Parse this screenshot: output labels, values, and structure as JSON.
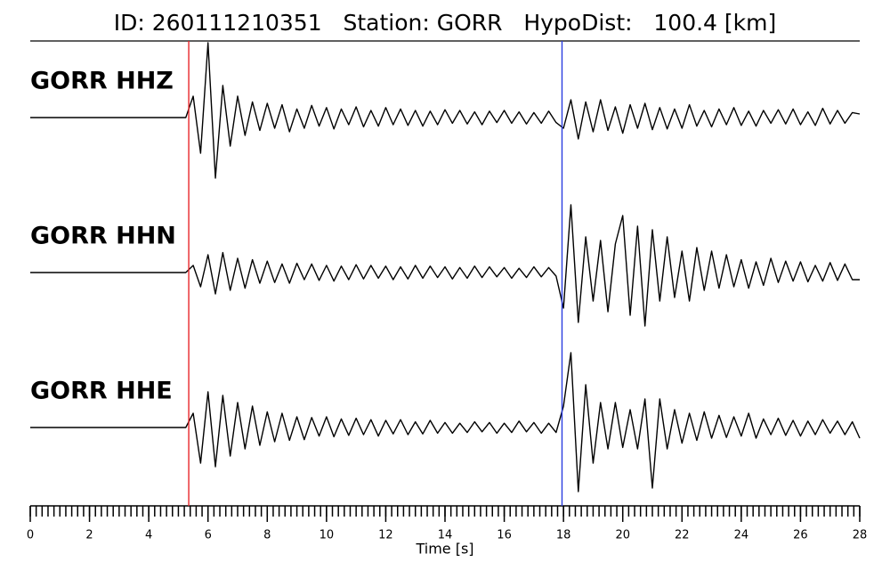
{
  "chart_data": {
    "type": "seismogram",
    "title": "ID: 260111210351   Station: GORR   HypoDist:   100.4 [km]",
    "xlabel": "Time [s]",
    "xlim": [
      0,
      28
    ],
    "xticks": [
      0,
      2,
      4,
      6,
      8,
      10,
      12,
      14,
      16,
      18,
      20,
      22,
      24,
      26,
      28
    ],
    "minor_tick_interval": 0.2,
    "label_color": "#4c9a0c",
    "picks": [
      {
        "time": 5.35,
        "color": "#e8262a"
      },
      {
        "time": 17.95,
        "color": "#2a3de0"
      }
    ],
    "x": [
      0,
      0.25,
      0.5,
      0.75,
      1,
      1.25,
      1.5,
      1.75,
      2,
      2.25,
      2.5,
      2.75,
      3,
      3.25,
      3.5,
      3.75,
      4,
      4.25,
      4.5,
      4.75,
      5,
      5.25,
      5.5,
      5.75,
      6,
      6.25,
      6.5,
      6.75,
      7,
      7.25,
      7.5,
      7.75,
      8,
      8.25,
      8.5,
      8.75,
      9,
      9.25,
      9.5,
      9.75,
      10,
      10.25,
      10.5,
      10.75,
      11,
      11.25,
      11.5,
      11.75,
      12,
      12.25,
      12.5,
      12.75,
      13,
      13.25,
      13.5,
      13.75,
      14,
      14.25,
      14.5,
      14.75,
      15,
      15.25,
      15.5,
      15.75,
      16,
      16.25,
      16.5,
      16.75,
      17,
      17.25,
      17.5,
      17.75,
      18,
      18.25,
      18.5,
      18.75,
      19,
      19.25,
      19.5,
      19.75,
      20,
      20.25,
      20.5,
      20.75,
      21,
      21.25,
      21.5,
      21.75,
      22,
      22.25,
      22.5,
      22.75,
      23,
      23.25,
      23.5,
      23.75,
      24,
      24.25,
      24.5,
      24.75,
      25,
      25.25,
      25.5,
      25.75,
      26,
      26.25,
      26.5,
      26.75,
      27,
      27.25,
      27.5,
      27.75,
      28
    ],
    "series": [
      {
        "name": "GORR HHZ",
        "color": "#000000",
        "values": [
          0,
          0,
          0,
          0,
          0,
          0,
          0,
          0,
          0,
          0,
          0,
          0,
          0,
          0,
          0,
          0,
          0,
          0,
          0,
          0,
          0,
          0,
          0.3,
          -0.5,
          1.05,
          -0.85,
          0.45,
          -0.4,
          0.3,
          -0.25,
          0.22,
          -0.18,
          0.2,
          -0.15,
          0.18,
          -0.2,
          0.12,
          -0.15,
          0.17,
          -0.12,
          0.14,
          -0.16,
          0.12,
          -0.1,
          0.15,
          -0.13,
          0.1,
          -0.12,
          0.14,
          -0.1,
          0.12,
          -0.11,
          0.1,
          -0.12,
          0.09,
          -0.1,
          0.11,
          -0.08,
          0.1,
          -0.09,
          0.08,
          -0.1,
          0.09,
          -0.07,
          0.1,
          -0.08,
          0.08,
          -0.09,
          0.07,
          -0.08,
          0.09,
          -0.07,
          -0.15,
          0.25,
          -0.3,
          0.22,
          -0.2,
          0.25,
          -0.18,
          0.15,
          -0.22,
          0.18,
          -0.15,
          0.2,
          -0.17,
          0.14,
          -0.16,
          0.12,
          -0.15,
          0.18,
          -0.12,
          0.1,
          -0.13,
          0.12,
          -0.1,
          0.14,
          -0.11,
          0.09,
          -0.12,
          0.1,
          -0.08,
          0.11,
          -0.09,
          0.12,
          -0.1,
          0.08,
          -0.11,
          0.13,
          -0.09,
          0.1,
          -0.08,
          0.07,
          0.05
        ]
      },
      {
        "name": "GORR HHN",
        "color": "#000000",
        "values": [
          0,
          0,
          0,
          0,
          0,
          0,
          0,
          0,
          0,
          0,
          0,
          0,
          0,
          0,
          0,
          0,
          0,
          0,
          0,
          0,
          0,
          0,
          0.1,
          -0.2,
          0.25,
          -0.3,
          0.28,
          -0.25,
          0.2,
          -0.22,
          0.18,
          -0.15,
          0.16,
          -0.14,
          0.12,
          -0.15,
          0.13,
          -0.1,
          0.12,
          -0.11,
          0.1,
          -0.12,
          0.09,
          -0.1,
          0.11,
          -0.09,
          0.1,
          -0.08,
          0.09,
          -0.1,
          0.08,
          -0.09,
          0.1,
          -0.08,
          0.09,
          -0.07,
          0.08,
          -0.09,
          0.07,
          -0.08,
          0.09,
          -0.07,
          0.08,
          -0.06,
          0.07,
          -0.08,
          0.06,
          -0.07,
          0.08,
          -0.06,
          0.07,
          -0.05,
          -0.5,
          0.95,
          -0.7,
          0.5,
          -0.4,
          0.45,
          -0.55,
          0.4,
          0.8,
          -0.6,
          0.65,
          -0.75,
          0.6,
          -0.4,
          0.5,
          -0.35,
          0.3,
          -0.4,
          0.35,
          -0.25,
          0.3,
          -0.22,
          0.25,
          -0.2,
          0.18,
          -0.22,
          0.15,
          -0.18,
          0.2,
          -0.14,
          0.16,
          -0.12,
          0.15,
          -0.13,
          0.1,
          -0.12,
          0.14,
          -0.11,
          0.12,
          -0.1,
          -0.1
        ]
      },
      {
        "name": "GORR HHE",
        "color": "#000000",
        "values": [
          0,
          0,
          0,
          0,
          0,
          0,
          0,
          0,
          0,
          0,
          0,
          0,
          0,
          0,
          0,
          0,
          0,
          0,
          0,
          0,
          0,
          0,
          0.2,
          -0.5,
          0.5,
          -0.55,
          0.45,
          -0.4,
          0.35,
          -0.3,
          0.3,
          -0.25,
          0.22,
          -0.2,
          0.2,
          -0.18,
          0.15,
          -0.17,
          0.14,
          -0.12,
          0.15,
          -0.13,
          0.12,
          -0.11,
          0.13,
          -0.1,
          0.11,
          -0.12,
          0.1,
          -0.09,
          0.11,
          -0.1,
          0.08,
          -0.09,
          0.1,
          -0.08,
          0.07,
          -0.08,
          0.06,
          -0.07,
          0.08,
          -0.06,
          0.07,
          -0.08,
          0.06,
          -0.07,
          0.09,
          -0.06,
          0.07,
          -0.08,
          0.06,
          -0.07,
          0.3,
          1.05,
          -0.9,
          0.6,
          -0.5,
          0.35,
          -0.3,
          0.35,
          -0.28,
          0.25,
          -0.3,
          0.4,
          -0.85,
          0.4,
          -0.3,
          0.25,
          -0.22,
          0.2,
          -0.18,
          0.22,
          -0.15,
          0.17,
          -0.14,
          0.15,
          -0.12,
          0.2,
          -0.15,
          0.12,
          -0.1,
          0.13,
          -0.11,
          0.1,
          -0.12,
          0.09,
          -0.1,
          0.11,
          -0.08,
          0.09,
          -0.1,
          0.08,
          -0.15
        ]
      }
    ]
  }
}
